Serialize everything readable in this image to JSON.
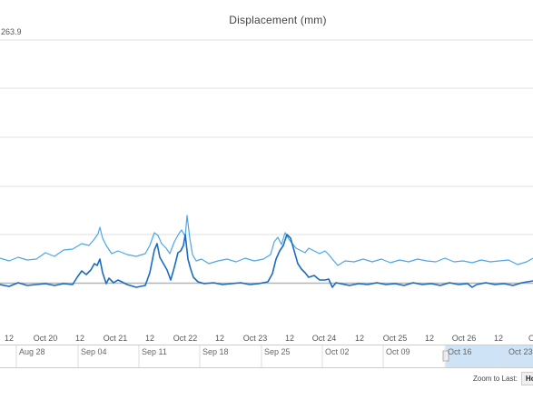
{
  "title": "Displacement (mm)",
  "zoom": {
    "label": "Zoom to Last:",
    "hour_button": "Hour"
  },
  "colors": {
    "upper_series": "#4da6e8",
    "lower_series": "#1a6cc2",
    "grid": "#e0e0e0",
    "baseline": "#b5b5b5",
    "navigator_selection": "#cfe3f7"
  },
  "chart_data": {
    "type": "line",
    "y_top_label": "263.9",
    "x_tick_labels": [
      "12",
      "Oct 20",
      "12",
      "Oct 21",
      "12",
      "Oct 22",
      "12",
      "Oct 23",
      "12",
      "Oct 24",
      "12",
      "Oct 25",
      "12",
      "Oct 26",
      "12",
      "Oct"
    ],
    "navigator_labels": [
      "Aug 28",
      "Sep 04",
      "Sep 11",
      "Sep 18",
      "Sep 25",
      "Oct 02",
      "Oct 09",
      "Oct 16",
      "Oct 23"
    ],
    "grid": true,
    "series": [
      {
        "key": "upper",
        "points": [
          [
            0,
            284
          ],
          [
            10,
            287
          ],
          [
            20,
            283
          ],
          [
            30,
            286
          ],
          [
            40,
            285
          ],
          [
            50,
            278
          ],
          [
            60,
            282
          ],
          [
            70,
            275
          ],
          [
            80,
            274
          ],
          [
            90,
            268
          ],
          [
            98,
            270
          ],
          [
            104,
            263
          ],
          [
            108,
            257
          ],
          [
            110,
            250
          ],
          [
            113,
            262
          ],
          [
            117,
            270
          ],
          [
            123,
            279
          ],
          [
            130,
            276
          ],
          [
            140,
            280
          ],
          [
            150,
            282
          ],
          [
            160,
            279
          ],
          [
            165,
            270
          ],
          [
            170,
            256
          ],
          [
            174,
            259
          ],
          [
            178,
            268
          ],
          [
            183,
            273
          ],
          [
            187,
            279
          ],
          [
            192,
            266
          ],
          [
            197,
            257
          ],
          [
            200,
            253
          ],
          [
            204,
            260
          ],
          [
            206,
            237
          ],
          [
            209,
            262
          ],
          [
            212,
            280
          ],
          [
            216,
            287
          ],
          [
            222,
            285
          ],
          [
            230,
            290
          ],
          [
            240,
            287
          ],
          [
            250,
            285
          ],
          [
            260,
            288
          ],
          [
            270,
            284
          ],
          [
            280,
            287
          ],
          [
            290,
            285
          ],
          [
            298,
            280
          ],
          [
            302,
            266
          ],
          [
            306,
            261
          ],
          [
            310,
            269
          ],
          [
            314,
            256
          ],
          [
            318,
            263
          ],
          [
            322,
            268
          ],
          [
            326,
            273
          ],
          [
            330,
            275
          ],
          [
            336,
            278
          ],
          [
            340,
            273
          ],
          [
            346,
            276
          ],
          [
            352,
            279
          ],
          [
            358,
            276
          ],
          [
            362,
            280
          ],
          [
            366,
            285
          ],
          [
            372,
            292
          ],
          [
            380,
            287
          ],
          [
            390,
            288
          ],
          [
            400,
            285
          ],
          [
            410,
            288
          ],
          [
            420,
            285
          ],
          [
            430,
            289
          ],
          [
            440,
            286
          ],
          [
            450,
            288
          ],
          [
            460,
            285
          ],
          [
            470,
            287
          ],
          [
            480,
            288
          ],
          [
            490,
            284
          ],
          [
            500,
            288
          ],
          [
            510,
            287
          ],
          [
            520,
            289
          ],
          [
            530,
            286
          ],
          [
            540,
            288
          ],
          [
            550,
            287
          ],
          [
            560,
            286
          ],
          [
            570,
            291
          ],
          [
            580,
            288
          ],
          [
            587,
            284
          ]
        ]
      },
      {
        "key": "lower",
        "points": [
          [
            0,
            313
          ],
          [
            10,
            315
          ],
          [
            20,
            311
          ],
          [
            30,
            314
          ],
          [
            40,
            313
          ],
          [
            50,
            312
          ],
          [
            60,
            314
          ],
          [
            70,
            312
          ],
          [
            80,
            313
          ],
          [
            85,
            305
          ],
          [
            90,
            298
          ],
          [
            95,
            302
          ],
          [
            100,
            297
          ],
          [
            104,
            290
          ],
          [
            107,
            292
          ],
          [
            110,
            285
          ],
          [
            113,
            300
          ],
          [
            117,
            312
          ],
          [
            120,
            306
          ],
          [
            125,
            311
          ],
          [
            130,
            308
          ],
          [
            140,
            313
          ],
          [
            150,
            316
          ],
          [
            160,
            314
          ],
          [
            165,
            300
          ],
          [
            170,
            275
          ],
          [
            173,
            268
          ],
          [
            176,
            283
          ],
          [
            180,
            290
          ],
          [
            184,
            297
          ],
          [
            188,
            308
          ],
          [
            192,
            294
          ],
          [
            196,
            278
          ],
          [
            199,
            276
          ],
          [
            202,
            270
          ],
          [
            204,
            258
          ],
          [
            207,
            285
          ],
          [
            210,
            296
          ],
          [
            213,
            305
          ],
          [
            218,
            310
          ],
          [
            225,
            312
          ],
          [
            235,
            311
          ],
          [
            245,
            313
          ],
          [
            255,
            312
          ],
          [
            265,
            311
          ],
          [
            275,
            313
          ],
          [
            285,
            312
          ],
          [
            295,
            310
          ],
          [
            300,
            301
          ],
          [
            304,
            285
          ],
          [
            308,
            276
          ],
          [
            312,
            270
          ],
          [
            316,
            258
          ],
          [
            320,
            262
          ],
          [
            324,
            276
          ],
          [
            328,
            290
          ],
          [
            332,
            296
          ],
          [
            336,
            300
          ],
          [
            340,
            305
          ],
          [
            346,
            303
          ],
          [
            352,
            308
          ],
          [
            358,
            308
          ],
          [
            362,
            307
          ],
          [
            366,
            316
          ],
          [
            370,
            311
          ],
          [
            375,
            312
          ],
          [
            385,
            314
          ],
          [
            395,
            312
          ],
          [
            405,
            313
          ],
          [
            415,
            311
          ],
          [
            425,
            313
          ],
          [
            435,
            312
          ],
          [
            445,
            314
          ],
          [
            455,
            311
          ],
          [
            465,
            313
          ],
          [
            475,
            312
          ],
          [
            485,
            314
          ],
          [
            495,
            311
          ],
          [
            505,
            313
          ],
          [
            515,
            312
          ],
          [
            520,
            316
          ],
          [
            525,
            313
          ],
          [
            535,
            311
          ],
          [
            545,
            313
          ],
          [
            555,
            312
          ],
          [
            565,
            314
          ],
          [
            575,
            311
          ],
          [
            587,
            309
          ]
        ]
      }
    ]
  }
}
